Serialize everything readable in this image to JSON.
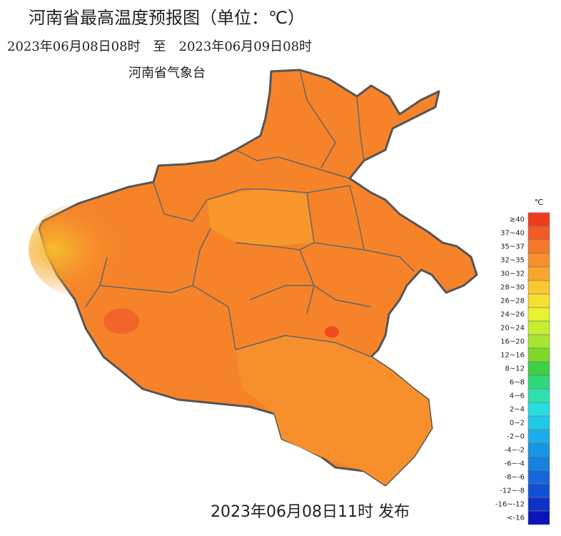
{
  "header": {
    "title": "河南省最高温度预报图（单位：℃）",
    "period": "2023年06月08日08时　至　2023年06月09日08时",
    "issuer": "河南省气象台"
  },
  "legend": {
    "unit": "℃",
    "items": [
      {
        "label": "≥40",
        "color": "#f03c1e"
      },
      {
        "label": "37~40",
        "color": "#f55a23"
      },
      {
        "label": "35~37",
        "color": "#f6782a"
      },
      {
        "label": "32~35",
        "color": "#f7902c"
      },
      {
        "label": "30~32",
        "color": "#f9a72a"
      },
      {
        "label": "28~30",
        "color": "#fbc72e"
      },
      {
        "label": "26~28",
        "color": "#f5e030"
      },
      {
        "label": "24~26",
        "color": "#e8f230"
      },
      {
        "label": "20~24",
        "color": "#c8ee32"
      },
      {
        "label": "16~20",
        "color": "#a6e632"
      },
      {
        "label": "12~16",
        "color": "#7ed92a"
      },
      {
        "label": "8~12",
        "color": "#3ed045"
      },
      {
        "label": "6~8",
        "color": "#2ed97a"
      },
      {
        "label": "4~6",
        "color": "#2ee0b0"
      },
      {
        "label": "2~4",
        "color": "#27dde0"
      },
      {
        "label": "0~2",
        "color": "#1ec8e8"
      },
      {
        "label": "-2~0",
        "color": "#1aaee8"
      },
      {
        "label": "-4~-2",
        "color": "#1896e6"
      },
      {
        "label": "-6~-4",
        "color": "#1680e0"
      },
      {
        "label": "-8~-6",
        "color": "#1468dc"
      },
      {
        "label": "-12~-8",
        "color": "#1050d2"
      },
      {
        "label": "-16~-12",
        "color": "#0c32c8"
      },
      {
        "label": "<-16",
        "color": "#0a14b8"
      }
    ]
  },
  "footer": {
    "published": "2023年06月08日11时 发布"
  }
}
